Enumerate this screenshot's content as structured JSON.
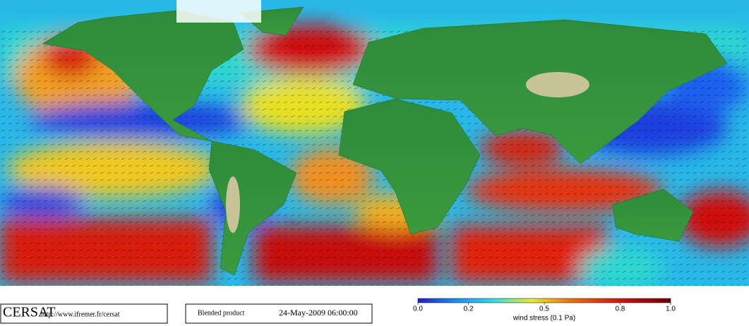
{
  "footer": {
    "logo": "CERSAT",
    "url": "http://www.ifremer.fr/cersat",
    "product": "Blended product",
    "date": "24-May-2009 06:00:00"
  },
  "colorbar": {
    "label": "wind stress (0.1 Pa)",
    "lim": [
      0,
      1
    ],
    "ticks": [
      {
        "value": 0,
        "label": "0.0"
      },
      0.2,
      0.5,
      0.8,
      {
        "value": 1,
        "label": "1.0"
      }
    ]
  }
}
